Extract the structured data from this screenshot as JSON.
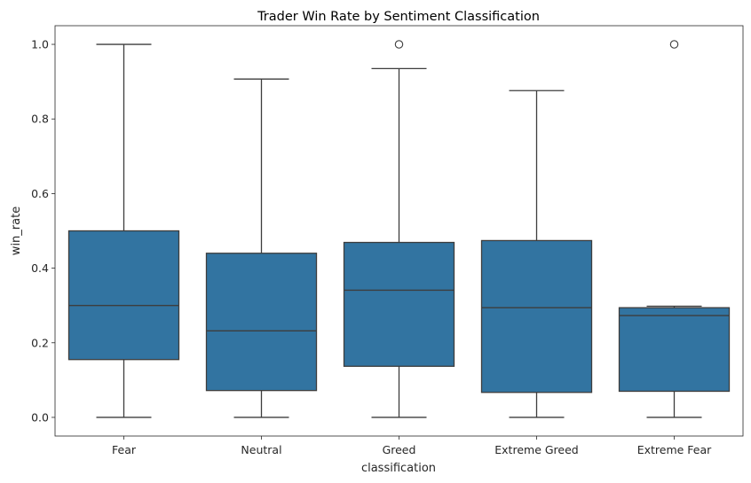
{
  "chart_data": {
    "type": "box",
    "title": "Trader Win Rate by Sentiment Classification",
    "xlabel": "classification",
    "ylabel": "win_rate",
    "ylim": [
      -0.05,
      1.05
    ],
    "yticks": [
      "0.0",
      "0.2",
      "0.4",
      "0.6",
      "0.8",
      "1.0"
    ],
    "categories": [
      "Fear",
      "Neutral",
      "Greed",
      "Extreme Greed",
      "Extreme Fear"
    ],
    "boxes": [
      {
        "category": "Fear",
        "whisker_low": 0.0,
        "q1": 0.155,
        "median": 0.3,
        "q3": 0.5,
        "whisker_high": 1.0,
        "outliers": []
      },
      {
        "category": "Neutral",
        "whisker_low": 0.0,
        "q1": 0.072,
        "median": 0.232,
        "q3": 0.44,
        "whisker_high": 0.907,
        "outliers": []
      },
      {
        "category": "Greed",
        "whisker_low": 0.0,
        "q1": 0.137,
        "median": 0.341,
        "q3": 0.469,
        "whisker_high": 0.935,
        "outliers": [
          1.0
        ]
      },
      {
        "category": "Extreme Greed",
        "whisker_low": 0.0,
        "q1": 0.067,
        "median": 0.294,
        "q3": 0.474,
        "whisker_high": 0.876,
        "outliers": []
      },
      {
        "category": "Extreme Fear",
        "whisker_low": 0.0,
        "q1": 0.07,
        "median": 0.273,
        "q3": 0.294,
        "whisker_high": 0.298,
        "outliers": [
          1.0
        ]
      }
    ],
    "box_color": "#3274a1",
    "line_color": "#3d3d3d",
    "grid": false
  }
}
